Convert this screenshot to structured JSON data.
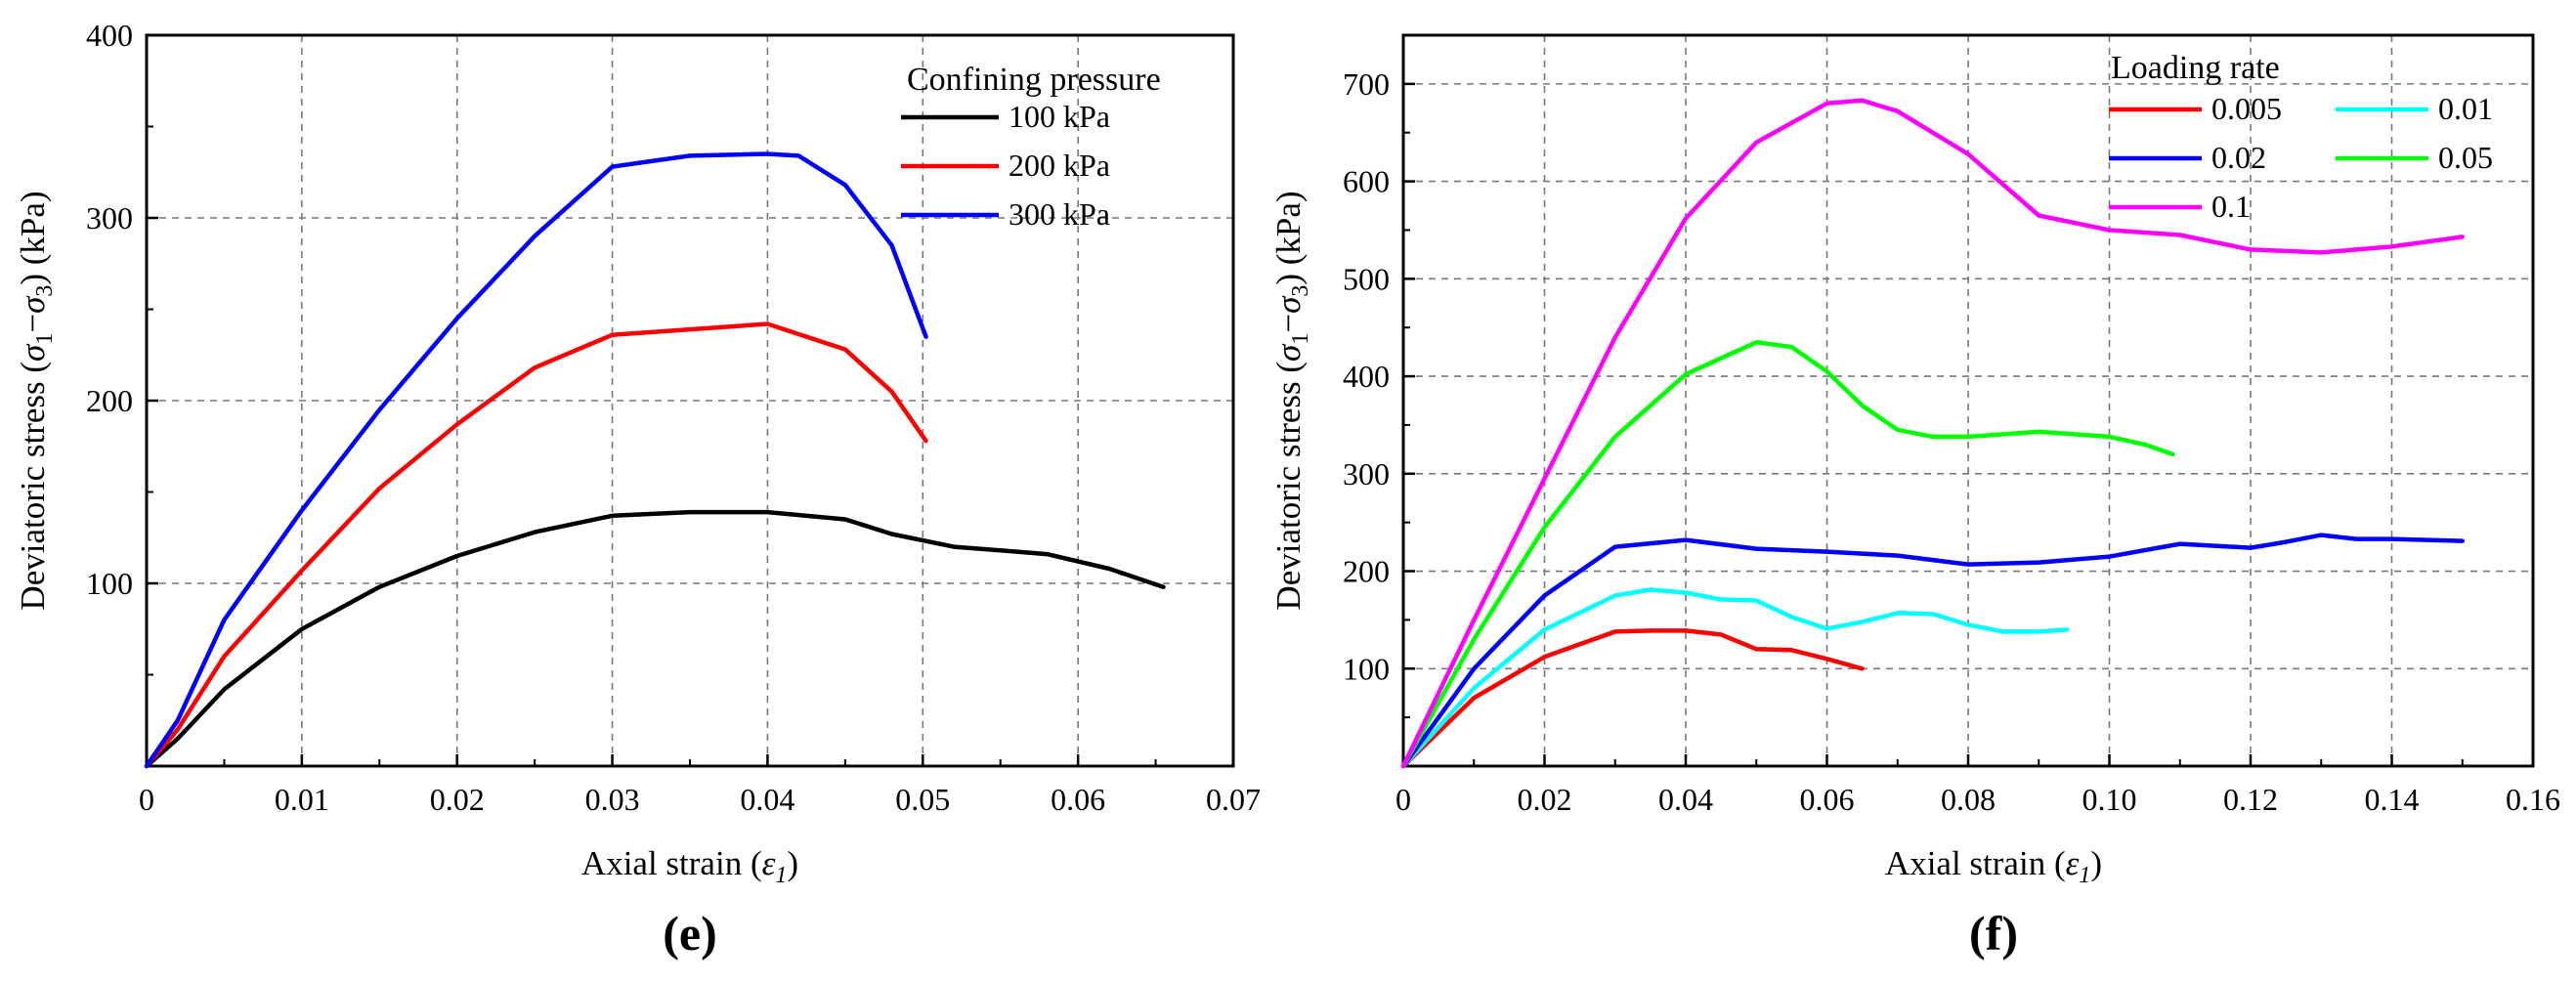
{
  "chart_data": [
    {
      "type": "line",
      "panel_label": "(e)",
      "xlabel": "Axial strain",
      "xlabel_symbol": "ε",
      "xlabel_subscript": "1",
      "ylabel": "Deviatoric stress",
      "ylabel_sigma1": "σ",
      "ylabel_sub1": "1",
      "ylabel_minus": "−",
      "ylabel_sigma3": "σ",
      "ylabel_sub3": "3",
      "ylabel_unit": "(kPa)",
      "xlim": [
        0,
        0.07
      ],
      "ylim": [
        0,
        400
      ],
      "xticks": [
        0,
        0.01,
        0.02,
        0.03,
        0.04,
        0.05,
        0.06,
        0.07
      ],
      "xtick_labels": [
        "0",
        "0.01",
        "0.02",
        "0.03",
        "0.04",
        "0.05",
        "0.06",
        "0.07"
      ],
      "yticks": [
        100,
        200,
        300,
        400
      ],
      "ytick_labels": [
        "100",
        "200",
        "300",
        "400"
      ],
      "grid": true,
      "legend_title": "Confining pressure",
      "legend_position": "top-right",
      "series": [
        {
          "name": "100 kPa",
          "color": "#000000",
          "points": [
            [
              0,
              0
            ],
            [
              0.002,
              15
            ],
            [
              0.005,
              42
            ],
            [
              0.01,
              75
            ],
            [
              0.015,
              98
            ],
            [
              0.02,
              115
            ],
            [
              0.025,
              128
            ],
            [
              0.03,
              137
            ],
            [
              0.035,
              139
            ],
            [
              0.04,
              139
            ],
            [
              0.045,
              135
            ],
            [
              0.048,
              127
            ],
            [
              0.052,
              120
            ],
            [
              0.055,
              118
            ],
            [
              0.058,
              116
            ],
            [
              0.062,
              108
            ],
            [
              0.0655,
              98
            ]
          ]
        },
        {
          "name": "200 kPa",
          "color": "#ff0000",
          "points": [
            [
              0,
              0
            ],
            [
              0.002,
              20
            ],
            [
              0.005,
              60
            ],
            [
              0.01,
              107
            ],
            [
              0.015,
              152
            ],
            [
              0.02,
              187
            ],
            [
              0.025,
              218
            ],
            [
              0.03,
              236
            ],
            [
              0.035,
              239
            ],
            [
              0.04,
              242
            ],
            [
              0.045,
              228
            ],
            [
              0.048,
              205
            ],
            [
              0.0502,
              178
            ]
          ]
        },
        {
          "name": "300 kPa",
          "color": "#0000ff",
          "points": [
            [
              0,
              0
            ],
            [
              0.002,
              25
            ],
            [
              0.005,
              80
            ],
            [
              0.01,
              140
            ],
            [
              0.015,
              195
            ],
            [
              0.02,
              245
            ],
            [
              0.025,
              290
            ],
            [
              0.03,
              328
            ],
            [
              0.035,
              334
            ],
            [
              0.04,
              335
            ],
            [
              0.042,
              334
            ],
            [
              0.045,
              318
            ],
            [
              0.048,
              285
            ],
            [
              0.0502,
              235
            ]
          ]
        }
      ]
    },
    {
      "type": "line",
      "panel_label": "(f)",
      "xlabel": "Axial strain",
      "xlabel_symbol": "ε",
      "xlabel_subscript": "1",
      "ylabel": "Deviatoric stress",
      "ylabel_sigma1": "σ",
      "ylabel_sub1": "1",
      "ylabel_minus": "−",
      "ylabel_sigma3": "σ",
      "ylabel_sub3": "3",
      "ylabel_unit": "(kPa)",
      "xlim": [
        0,
        0.16
      ],
      "ylim": [
        0,
        750
      ],
      "xticks": [
        0,
        0.02,
        0.04,
        0.06,
        0.08,
        0.1,
        0.12,
        0.14,
        0.16
      ],
      "xtick_labels": [
        "0",
        "0.02",
        "0.04",
        "0.06",
        "0.08",
        "0.10",
        "0.12",
        "0.14",
        "0.16"
      ],
      "yticks": [
        100,
        200,
        300,
        400,
        500,
        600,
        700
      ],
      "ytick_labels": [
        "100",
        "200",
        "300",
        "400",
        "500",
        "600",
        "700"
      ],
      "grid": true,
      "legend_title": "Loading rate",
      "legend_position": "top-right",
      "series": [
        {
          "name": "0.005",
          "color": "#ff0000",
          "points": [
            [
              0,
              0
            ],
            [
              0.01,
              70
            ],
            [
              0.02,
              112
            ],
            [
              0.025,
              125
            ],
            [
              0.03,
              138
            ],
            [
              0.035,
              139
            ],
            [
              0.04,
              139
            ],
            [
              0.045,
              135
            ],
            [
              0.05,
              120
            ],
            [
              0.055,
              119
            ],
            [
              0.06,
              110
            ],
            [
              0.065,
              100
            ]
          ]
        },
        {
          "name": "0.01",
          "color": "#00ffff",
          "points": [
            [
              0,
              0
            ],
            [
              0.01,
              80
            ],
            [
              0.02,
              140
            ],
            [
              0.03,
              175
            ],
            [
              0.035,
              181
            ],
            [
              0.04,
              178
            ],
            [
              0.045,
              171
            ],
            [
              0.05,
              170
            ],
            [
              0.055,
              153
            ],
            [
              0.06,
              141
            ],
            [
              0.065,
              148
            ],
            [
              0.07,
              157
            ],
            [
              0.075,
              156
            ],
            [
              0.08,
              145
            ],
            [
              0.085,
              138
            ],
            [
              0.09,
              138
            ],
            [
              0.094,
              140
            ]
          ]
        },
        {
          "name": "0.02",
          "color": "#0000ff",
          "points": [
            [
              0,
              0
            ],
            [
              0.01,
              100
            ],
            [
              0.02,
              175
            ],
            [
              0.03,
              225
            ],
            [
              0.04,
              232
            ],
            [
              0.05,
              223
            ],
            [
              0.06,
              220
            ],
            [
              0.07,
              216
            ],
            [
              0.08,
              207
            ],
            [
              0.09,
              209
            ],
            [
              0.1,
              215
            ],
            [
              0.11,
              228
            ],
            [
              0.12,
              224
            ],
            [
              0.125,
              230
            ],
            [
              0.13,
              237
            ],
            [
              0.135,
              233
            ],
            [
              0.14,
              233
            ],
            [
              0.15,
              231
            ]
          ]
        },
        {
          "name": "0.05",
          "color": "#00ff00",
          "points": [
            [
              0,
              0
            ],
            [
              0.01,
              130
            ],
            [
              0.02,
              245
            ],
            [
              0.03,
              338
            ],
            [
              0.04,
              402
            ],
            [
              0.05,
              435
            ],
            [
              0.055,
              430
            ],
            [
              0.06,
              405
            ],
            [
              0.065,
              370
            ],
            [
              0.07,
              345
            ],
            [
              0.075,
              338
            ],
            [
              0.08,
              338
            ],
            [
              0.09,
              343
            ],
            [
              0.1,
              338
            ],
            [
              0.105,
              330
            ],
            [
              0.109,
              320
            ]
          ]
        },
        {
          "name": "0.1",
          "color": "#ff00ff",
          "points": [
            [
              0,
              0
            ],
            [
              0.01,
              150
            ],
            [
              0.02,
              295
            ],
            [
              0.03,
              440
            ],
            [
              0.04,
              562
            ],
            [
              0.05,
              640
            ],
            [
              0.06,
              680
            ],
            [
              0.065,
              683
            ],
            [
              0.07,
              672
            ],
            [
              0.08,
              628
            ],
            [
              0.09,
              565
            ],
            [
              0.1,
              550
            ],
            [
              0.11,
              545
            ],
            [
              0.12,
              530
            ],
            [
              0.13,
              527
            ],
            [
              0.14,
              533
            ],
            [
              0.15,
              543
            ]
          ]
        }
      ]
    }
  ]
}
